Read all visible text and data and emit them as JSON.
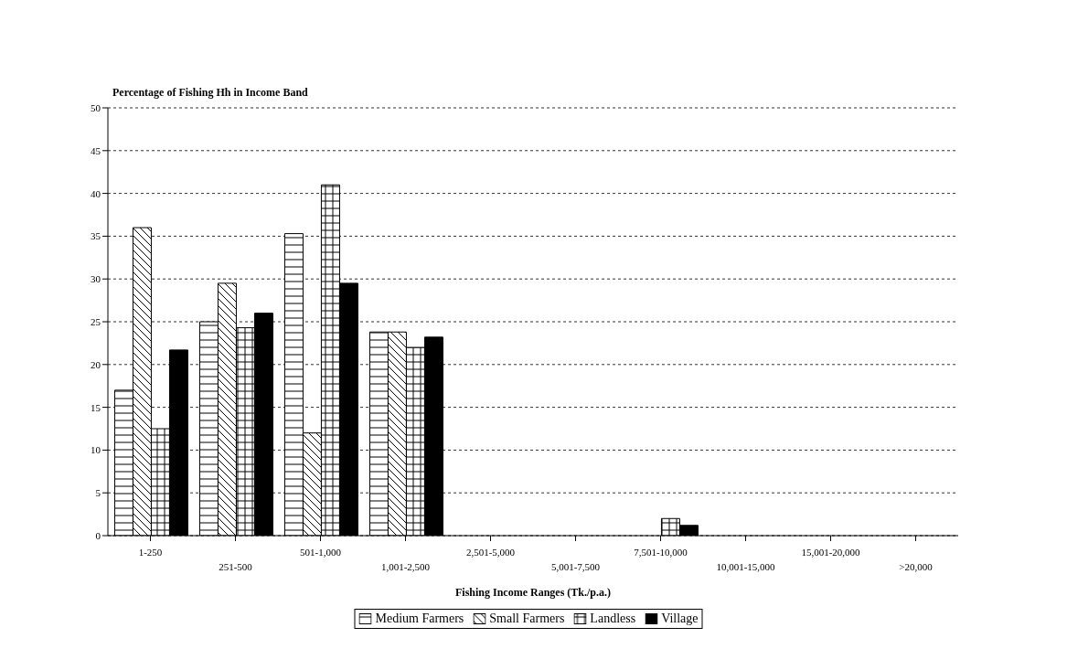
{
  "chart_data": {
    "type": "bar",
    "ylabel": "Percentage of Fishing Hh in Income Band",
    "xlabel": "Fishing Income Ranges  (Tk./p.a.)",
    "categories": [
      "1-250",
      "251-500",
      "501-1,000",
      "1,001-2,500",
      "2,501-5,000",
      "5,001-7,500",
      "7,501-10,000",
      "10,001-15,000",
      "15,001-20,000",
      ">20,000"
    ],
    "series": [
      {
        "name": "Medium Farmers",
        "color": "#000000",
        "values": [
          17,
          25,
          35.3,
          23.8,
          0,
          0,
          0,
          0,
          0,
          0
        ]
      },
      {
        "name": "Small Farmers",
        "color": "#000000",
        "values": [
          36,
          29.5,
          12,
          23.8,
          0,
          0,
          0,
          0,
          0,
          0
        ]
      },
      {
        "name": "Landless",
        "color": "#000000",
        "values": [
          12.5,
          24.3,
          41,
          22,
          0,
          0,
          2,
          0,
          0,
          0
        ]
      },
      {
        "name": "Village",
        "color": "#000000",
        "values": [
          21.7,
          26,
          29.5,
          23.2,
          0,
          0,
          1.2,
          0,
          0,
          0
        ]
      }
    ],
    "ylim": [
      0,
      50
    ],
    "yticks": [
      0,
      5,
      10,
      15,
      20,
      25,
      30,
      35,
      40,
      45,
      50
    ],
    "grid": "y",
    "legend": "bottom"
  }
}
